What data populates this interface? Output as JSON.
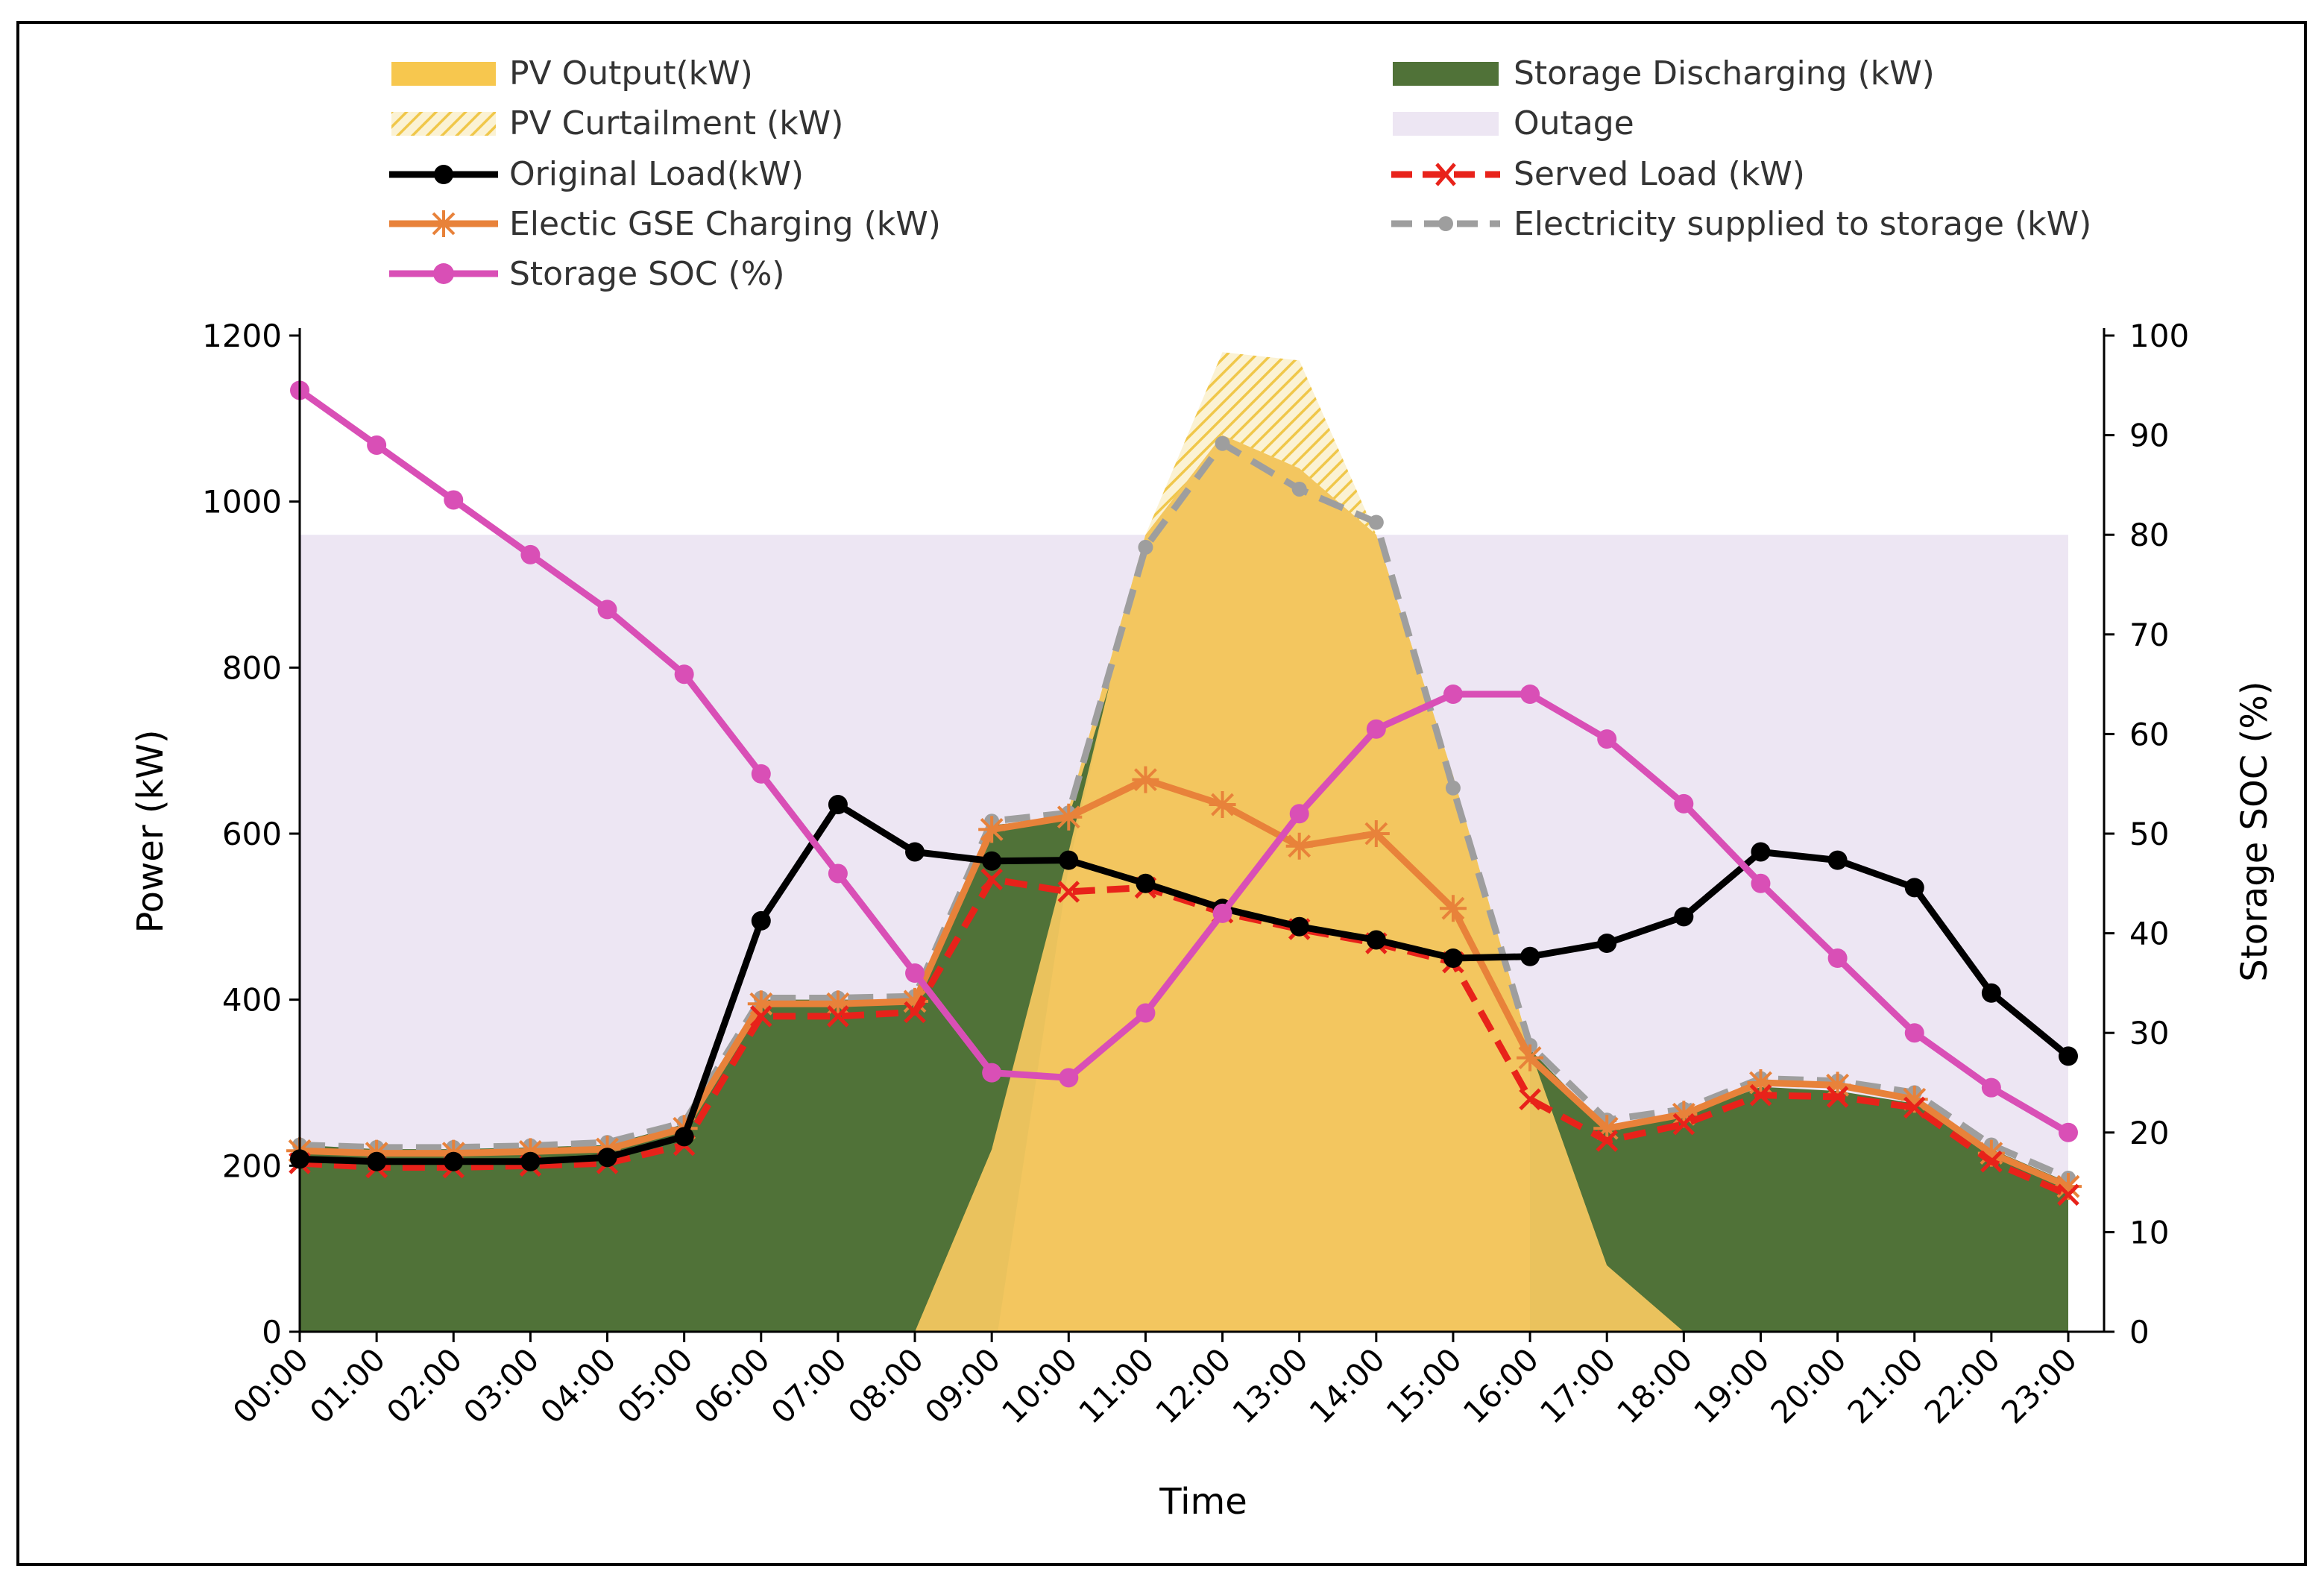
{
  "chart_data": {
    "type": "line",
    "title": "",
    "xlabel": "Time",
    "ylabel": "Power (kW)",
    "y2label": "Storage SOC (%)",
    "ylim": [
      0,
      1200
    ],
    "y2lim": [
      0,
      100
    ],
    "yticks": [
      "0",
      "200",
      "400",
      "600",
      "800",
      "1000",
      "1200"
    ],
    "y2ticks": [
      "0",
      "10",
      "20",
      "30",
      "40",
      "50",
      "60",
      "70",
      "80",
      "90",
      "100"
    ],
    "categories": [
      "00:00",
      "01:00",
      "02:00",
      "03:00",
      "04:00",
      "05:00",
      "06:00",
      "07:00",
      "08:00",
      "09:00",
      "10:00",
      "11:00",
      "12:00",
      "13:00",
      "14:00",
      "15:00",
      "16:00",
      "17:00",
      "18:00",
      "19:00",
      "20:00",
      "21:00",
      "22:00",
      "23:00"
    ],
    "outage": {
      "label": "Outage",
      "from": "00:00",
      "to": "23:00",
      "value": 960,
      "color": "#ede6f3"
    },
    "series": [
      {
        "name": "PV Output(kW)",
        "kind": "area",
        "axis": "left",
        "color": "#f2c65f",
        "values": [
          0,
          0,
          0,
          0,
          0,
          0,
          0,
          0,
          0,
          220,
          630,
          960,
          1080,
          1040,
          960,
          670,
          340,
          80,
          0,
          0,
          0,
          0,
          0,
          0
        ]
      },
      {
        "name": "PV Curtailment (kW)",
        "kind": "hatch",
        "axis": "left",
        "color": "#f3cf5c",
        "values": [
          0,
          0,
          0,
          0,
          0,
          0,
          0,
          0,
          0,
          220,
          630,
          960,
          1180,
          1170,
          960,
          670,
          340,
          80,
          0,
          0,
          0,
          0,
          0,
          0
        ]
      },
      {
        "name": "Storage Discharging (kW)",
        "kind": "area",
        "axis": "left",
        "color": "#507238",
        "values": [
          225,
          220,
          220,
          222,
          225,
          250,
          400,
          400,
          400,
          610,
          620,
          0,
          0,
          0,
          0,
          0,
          340,
          245,
          260,
          295,
          290,
          275,
          220,
          180
        ]
      },
      {
        "name": "Original Load(kW)",
        "kind": "line",
        "axis": "left",
        "color": "#000000",
        "marker": "circle",
        "values": [
          208,
          205,
          205,
          205,
          210,
          235,
          495,
          635,
          578,
          567,
          568,
          540,
          510,
          488,
          472,
          450,
          452,
          468,
          500,
          578,
          568,
          535,
          408,
          332
        ]
      },
      {
        "name": "Served Load (kW)",
        "kind": "line",
        "axis": "left",
        "color": "#e8221a",
        "marker": "x",
        "dash": true,
        "values": [
          203,
          198,
          198,
          200,
          203,
          225,
          380,
          380,
          385,
          545,
          530,
          535,
          505,
          485,
          468,
          445,
          280,
          230,
          250,
          285,
          283,
          270,
          205,
          165
        ]
      },
      {
        "name": "Electic GSE Charging (kW)",
        "kind": "line",
        "axis": "left",
        "color": "#e8823a",
        "marker": "star",
        "values": [
          218,
          215,
          215,
          217,
          220,
          245,
          395,
          395,
          398,
          605,
          620,
          665,
          635,
          585,
          600,
          510,
          330,
          245,
          262,
          300,
          297,
          280,
          215,
          175
        ]
      },
      {
        "name": "Electricity supplied to storage (kW)",
        "kind": "line",
        "axis": "left",
        "color": "#9e9e9e",
        "marker": "circle-small",
        "dash": true,
        "values": [
          225,
          222,
          222,
          224,
          228,
          252,
          402,
          402,
          404,
          615,
          625,
          945,
          1070,
          1015,
          975,
          655,
          345,
          255,
          268,
          305,
          302,
          288,
          225,
          185
        ]
      },
      {
        "name": "Storage SOC (%)",
        "kind": "line",
        "axis": "right",
        "color": "#d94fb6",
        "marker": "circle",
        "values": [
          94.5,
          89,
          83.5,
          78,
          72.5,
          66,
          56,
          46,
          36,
          26,
          25.5,
          32,
          42,
          52,
          60.5,
          64,
          64,
          59.5,
          53,
          45,
          37.5,
          30,
          24.5,
          20
        ]
      }
    ],
    "legend_position": "top"
  }
}
